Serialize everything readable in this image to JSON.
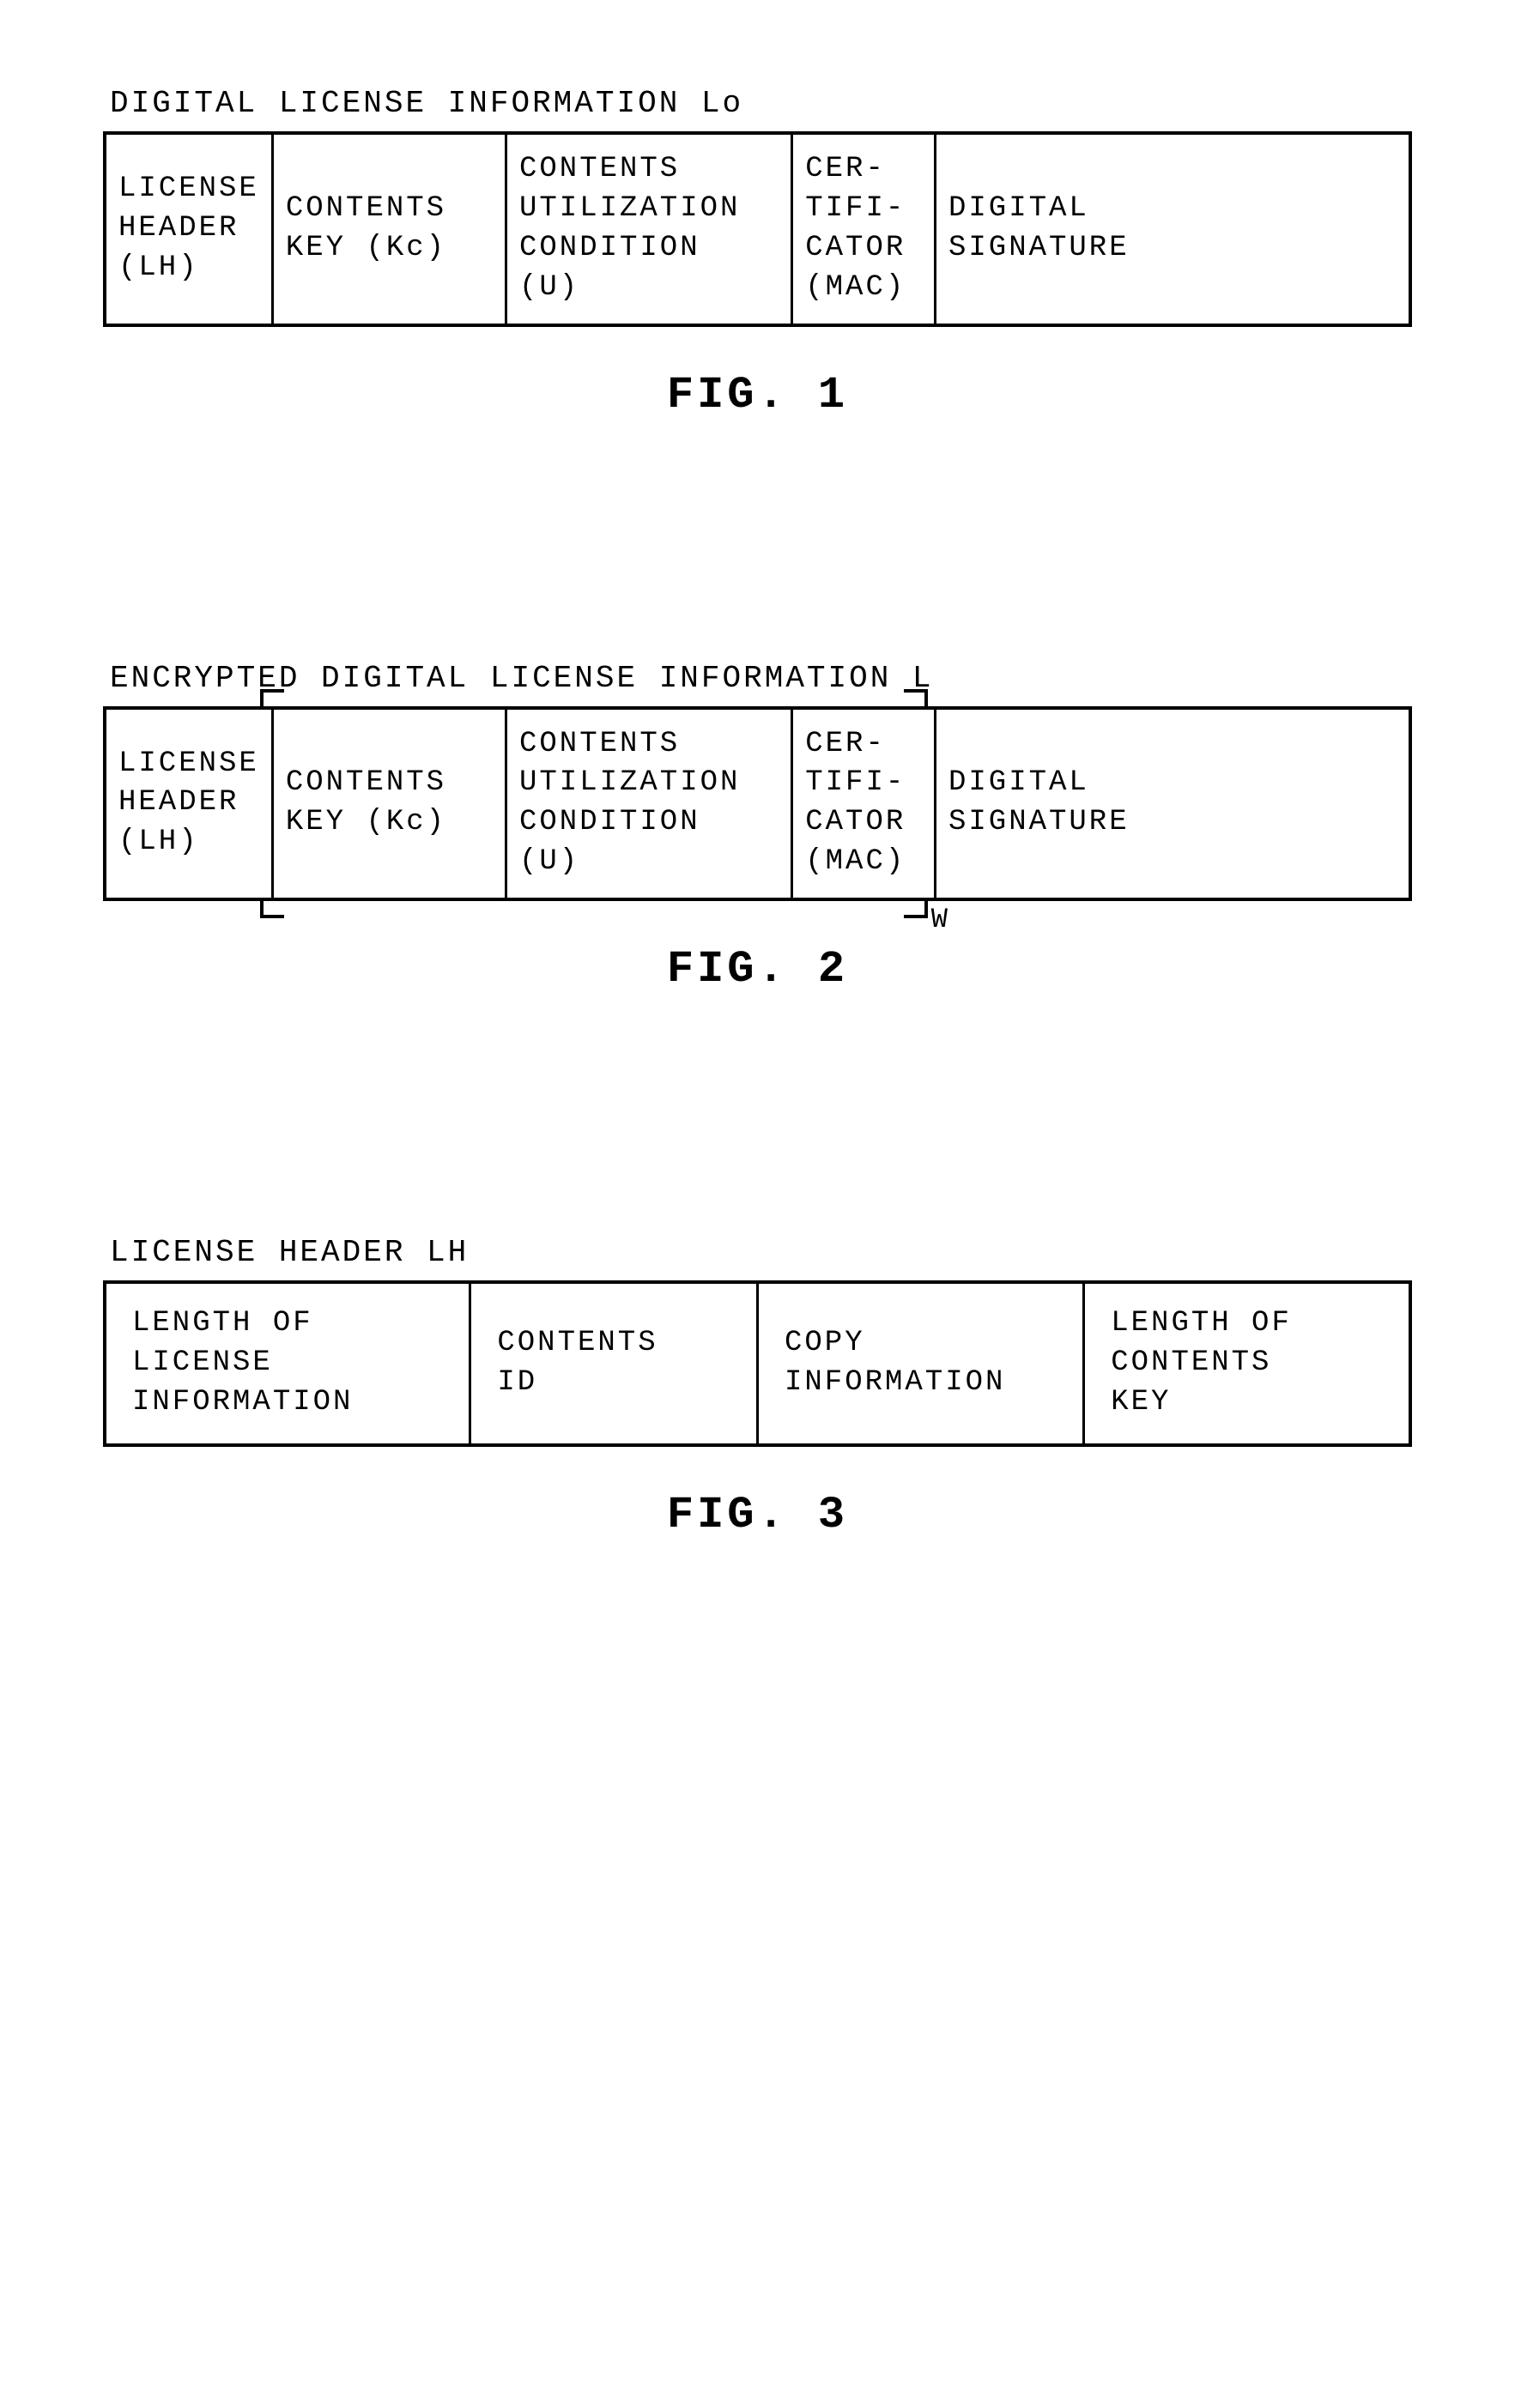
{
  "layout": {
    "background_color": "#ffffff",
    "text_color": "#000000",
    "border_color": "#000000",
    "font_family": "Courier New, monospace",
    "title_fontsize": 36,
    "cell_fontsize": 34,
    "caption_fontsize": 52,
    "letter_spacing": 3,
    "border_outer_width": 4,
    "border_inner_width": 3
  },
  "fig1": {
    "title": "DIGITAL LICENSE INFORMATION Lo",
    "caption": "FIG. 1",
    "type": "table",
    "columns_pct": [
      12,
      18,
      22,
      11,
      37
    ],
    "cells": {
      "c0": "LICENSE\nHEADER\n(LH)",
      "c1": "CONTENTS\nKEY (Kc)",
      "c2": "CONTENTS\nUTILIZATION\nCONDITION\n(U)",
      "c3": "CER-\nTIFI-\nCATOR\n(MAC)",
      "c4": "DIGITAL\nSIGNATURE"
    }
  },
  "fig2": {
    "title": "ENCRYPTED DIGITAL LICENSE INFORMATION L",
    "caption": "FIG. 2",
    "type": "table",
    "columns_pct": [
      12,
      18,
      22,
      11,
      37
    ],
    "bracket": {
      "left_pct": 12,
      "right_pct": 63,
      "label": "W"
    },
    "cells": {
      "c0": "LICENSE\nHEADER\n(LH)",
      "c1": "CONTENTS\nKEY (Kc)",
      "c2": "CONTENTS\nUTILIZATION\nCONDITION\n(U)",
      "c3": "CER-\nTIFI-\nCATOR\n(MAC)",
      "c4": "DIGITAL\nSIGNATURE"
    }
  },
  "fig3": {
    "title": "LICENSE HEADER LH",
    "caption": "FIG. 3",
    "type": "table",
    "columns_pct": [
      28,
      22,
      25,
      25
    ],
    "cells": {
      "c0": "LENGTH OF\nLICENSE\nINFORMATION",
      "c1": "CONTENTS\nID",
      "c2": "COPY\nINFORMATION",
      "c3": "LENGTH OF\nCONTENTS\nKEY"
    }
  }
}
